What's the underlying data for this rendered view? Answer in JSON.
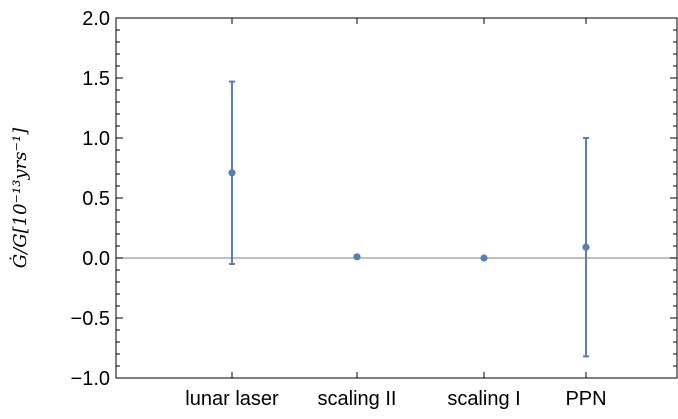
{
  "chart_data": {
    "type": "scatter",
    "title": "",
    "xlabel": "",
    "ylabel": "Ġ/G[10⁻¹³yrs⁻¹]",
    "ylim": [
      -1.0,
      2.0
    ],
    "y_ticks": [
      "2.0",
      "1.5",
      "1.0",
      "0.5",
      "0.0",
      "−0.5",
      "−1.0"
    ],
    "y_tick_values": [
      2.0,
      1.5,
      1.0,
      0.5,
      0.0,
      -0.5,
      -1.0
    ],
    "grid": false,
    "zero_line": true,
    "color": "#5b7db5",
    "points": [
      {
        "label": "lunar laser",
        "value": 0.71,
        "err_low": -0.05,
        "err_high": 1.47
      },
      {
        "label": "scaling II",
        "value": 0.01,
        "err_low": 0.01,
        "err_high": 0.01
      },
      {
        "label": "scaling I",
        "value": 0.0,
        "err_low": 0.0,
        "err_high": 0.0
      },
      {
        "label": "PPN",
        "value": 0.09,
        "err_low": -0.82,
        "err_high": 1.0
      }
    ]
  }
}
